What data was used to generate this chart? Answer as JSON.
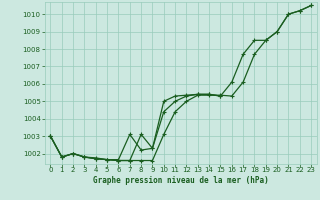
{
  "title": "Graphe pression niveau de la mer (hPa)",
  "background_color": "#cce8e0",
  "grid_color": "#99ccbb",
  "line_color": "#1a5e20",
  "xlim": [
    -0.5,
    23.5
  ],
  "ylim": [
    1001.4,
    1010.7
  ],
  "xticks": [
    0,
    1,
    2,
    3,
    4,
    5,
    6,
    7,
    8,
    9,
    10,
    11,
    12,
    13,
    14,
    15,
    16,
    17,
    18,
    19,
    20,
    21,
    22,
    23
  ],
  "yticks": [
    1002,
    1003,
    1004,
    1005,
    1006,
    1007,
    1008,
    1009,
    1010
  ],
  "line_main": [
    1003.0,
    1001.8,
    1002.0,
    1001.8,
    1001.7,
    1001.65,
    1001.6,
    1001.6,
    1001.6,
    1001.6,
    1003.1,
    1004.4,
    1005.0,
    1005.35,
    1005.35,
    1005.35,
    1005.3,
    1006.1,
    1007.7,
    1008.5,
    1009.0,
    1010.0,
    1010.2,
    1010.5
  ],
  "line_upper": [
    1003.0,
    1001.8,
    1002.0,
    1001.8,
    1001.75,
    1001.65,
    1001.65,
    1003.1,
    1002.2,
    1002.3,
    1005.0,
    1005.3,
    1005.35,
    1005.4,
    1005.4,
    1005.3,
    1006.1,
    1007.7,
    1008.5,
    1008.5,
    1009.0,
    1010.0,
    1010.2,
    1010.5
  ],
  "line_lower": [
    1003.0,
    1001.8,
    1002.0,
    1001.8,
    1001.7,
    1001.65,
    1001.6,
    1001.6,
    1003.1,
    1002.3,
    1004.4,
    1005.0,
    1005.3,
    1005.4,
    1005.4,
    1005.3,
    null,
    null,
    null,
    null,
    null,
    null,
    null,
    null
  ],
  "linewidth": 0.9,
  "marker_size": 3.0
}
